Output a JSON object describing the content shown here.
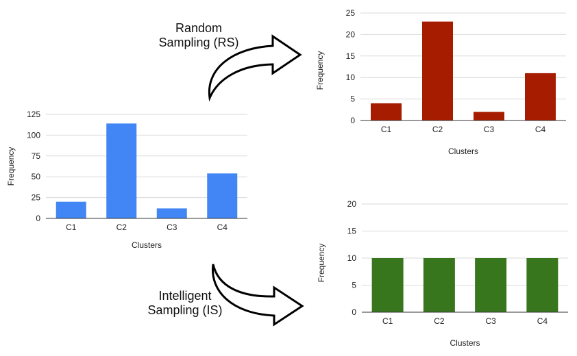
{
  "colors": {
    "original": "#4285f4",
    "random": "#a61c00",
    "intelligent": "#38761d",
    "arrow_stroke": "#000000"
  },
  "labels": {
    "random_line1": "Random",
    "random_line2": "Sampling (RS)",
    "intelligent_line1": "Intelligent",
    "intelligent_line2": "Sampling (IS)"
  },
  "chart_data": [
    {
      "id": "original",
      "type": "bar",
      "categories": [
        "C1",
        "C2",
        "C3",
        "C4"
      ],
      "values": [
        20,
        114,
        12,
        54
      ],
      "xlabel": "Clusters",
      "ylabel": "Frequency",
      "ylim": [
        0,
        125
      ],
      "yticks": [
        0,
        25,
        50,
        75,
        100,
        125
      ],
      "grid": true
    },
    {
      "id": "random",
      "type": "bar",
      "categories": [
        "C1",
        "C2",
        "C3",
        "C4"
      ],
      "values": [
        4,
        23,
        2,
        11
      ],
      "xlabel": "Clusters",
      "ylabel": "Frequency",
      "ylim": [
        0,
        25
      ],
      "yticks": [
        0,
        5,
        10,
        15,
        20,
        25
      ],
      "grid": true
    },
    {
      "id": "intelligent",
      "type": "bar",
      "categories": [
        "C1",
        "C2",
        "C3",
        "C4"
      ],
      "values": [
        10,
        10,
        10,
        10
      ],
      "xlabel": "Clusters",
      "ylabel": "Frequency",
      "ylim": [
        0,
        20
      ],
      "yticks": [
        0,
        5,
        10,
        15,
        20
      ],
      "grid": true
    }
  ]
}
